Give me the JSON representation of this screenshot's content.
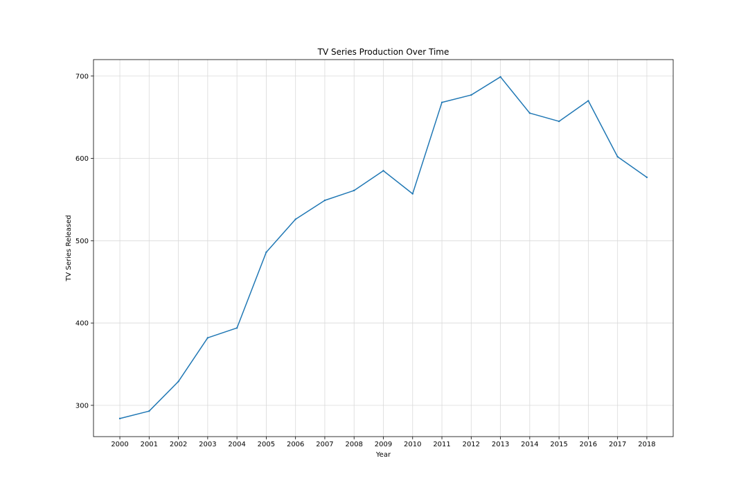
{
  "chart_data": {
    "type": "line",
    "title": "TV Series Production Over Time",
    "xlabel": "Year",
    "ylabel": "TV Series Released",
    "grid": true,
    "x": [
      2000,
      2001,
      2002,
      2003,
      2004,
      2005,
      2006,
      2007,
      2008,
      2009,
      2010,
      2011,
      2012,
      2013,
      2014,
      2015,
      2016,
      2017,
      2018
    ],
    "series": [
      {
        "name": "",
        "color": "#1f77b4",
        "values": [
          284,
          293,
          329,
          382,
          394,
          486,
          526,
          549,
          561,
          585,
          557,
          668,
          677,
          699,
          655,
          645,
          670,
          602,
          577
        ]
      }
    ],
    "xlim": [
      1999.1,
      2018.9
    ],
    "ylim": [
      262,
      720
    ],
    "yticks": [
      300,
      400,
      500,
      600,
      700
    ]
  }
}
